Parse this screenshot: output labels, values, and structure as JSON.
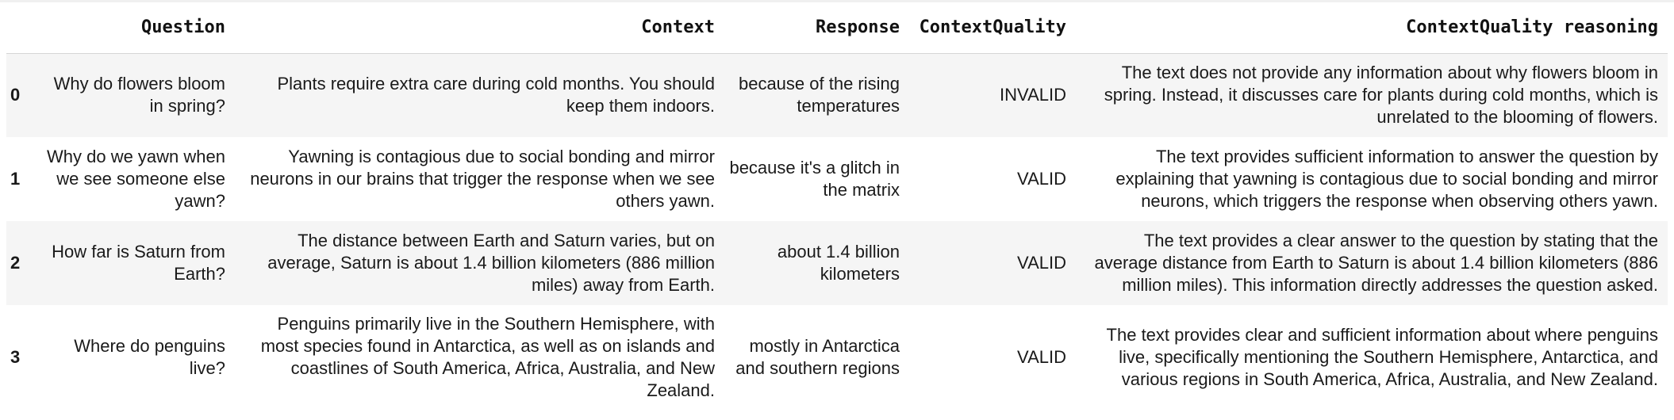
{
  "table": {
    "columns": [
      "",
      "Question",
      "Context",
      "Response",
      "ContextQuality",
      "ContextQuality reasoning"
    ],
    "rows": [
      {
        "index": "0",
        "question": "Why do flowers bloom in spring?",
        "context": "Plants require extra care during cold months. You should keep them indoors.",
        "response": "because of the rising temperatures",
        "context_quality": "INVALID",
        "reasoning": "The text does not provide any information about why flowers bloom in spring. Instead, it discusses care for plants during cold months, which is unrelated to the blooming of flowers."
      },
      {
        "index": "1",
        "question": "Why do we yawn when we see someone else yawn?",
        "context": "Yawning is contagious due to social bonding and mirror neurons in our brains that trigger the response when we see others yawn.",
        "response": "because it's a glitch in the matrix",
        "context_quality": "VALID",
        "reasoning": "The text provides sufficient information to answer the question by explaining that yawning is contagious due to social bonding and mirror neurons, which triggers the response when observing others yawn."
      },
      {
        "index": "2",
        "question": "How far is Saturn from Earth?",
        "context": "The distance between Earth and Saturn varies, but on average, Saturn is about 1.4 billion kilometers (886 million miles) away from Earth.",
        "response": "about 1.4 billion kilometers",
        "context_quality": "VALID",
        "reasoning": "The text provides a clear answer to the question by stating that the average distance from Earth to Saturn is about 1.4 billion kilometers (886 million miles). This information directly addresses the question asked."
      },
      {
        "index": "3",
        "question": "Where do penguins live?",
        "context": "Penguins primarily live in the Southern Hemisphere, with most species found in Antarctica, as well as on islands and coastlines of South America, Africa, Australia, and New Zealand.",
        "response": "mostly in Antarctica and southern regions",
        "context_quality": "VALID",
        "reasoning": "The text provides clear and sufficient information about where penguins live, specifically mentioning the Southern Hemisphere, Antarctica, and various regions in South America, Africa, Australia, and New Zealand."
      }
    ]
  }
}
